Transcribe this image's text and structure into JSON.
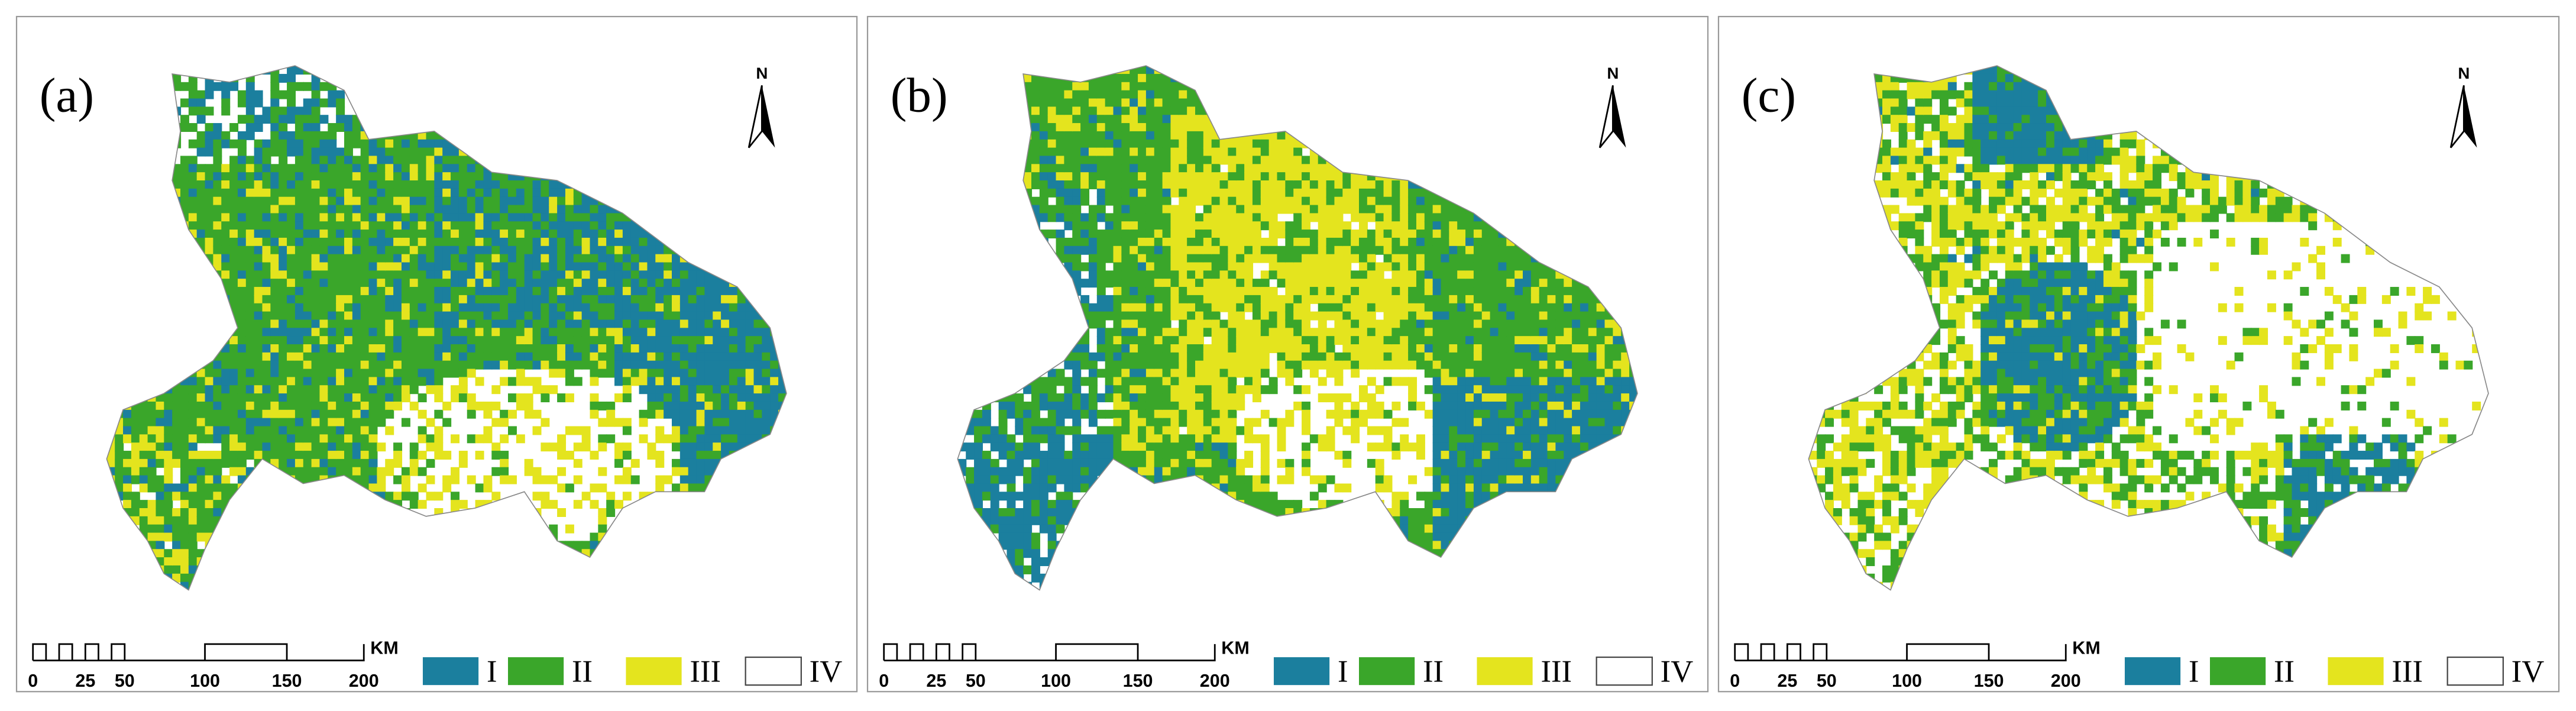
{
  "panels": [
    {
      "label": "(a)"
    },
    {
      "label": "(b)"
    },
    {
      "label": "(c)"
    }
  ],
  "north": "N",
  "scale_bar": {
    "ticks": [
      "0",
      "25",
      "50",
      "100",
      "150",
      "200"
    ],
    "unit": "KM"
  },
  "legend": [
    {
      "label": "I",
      "color": "#1b7f9e"
    },
    {
      "label": "II",
      "color": "#3aa62a"
    },
    {
      "label": "III",
      "color": "#e4e41e"
    },
    {
      "label": "IV",
      "color": "#ffffff"
    }
  ]
}
